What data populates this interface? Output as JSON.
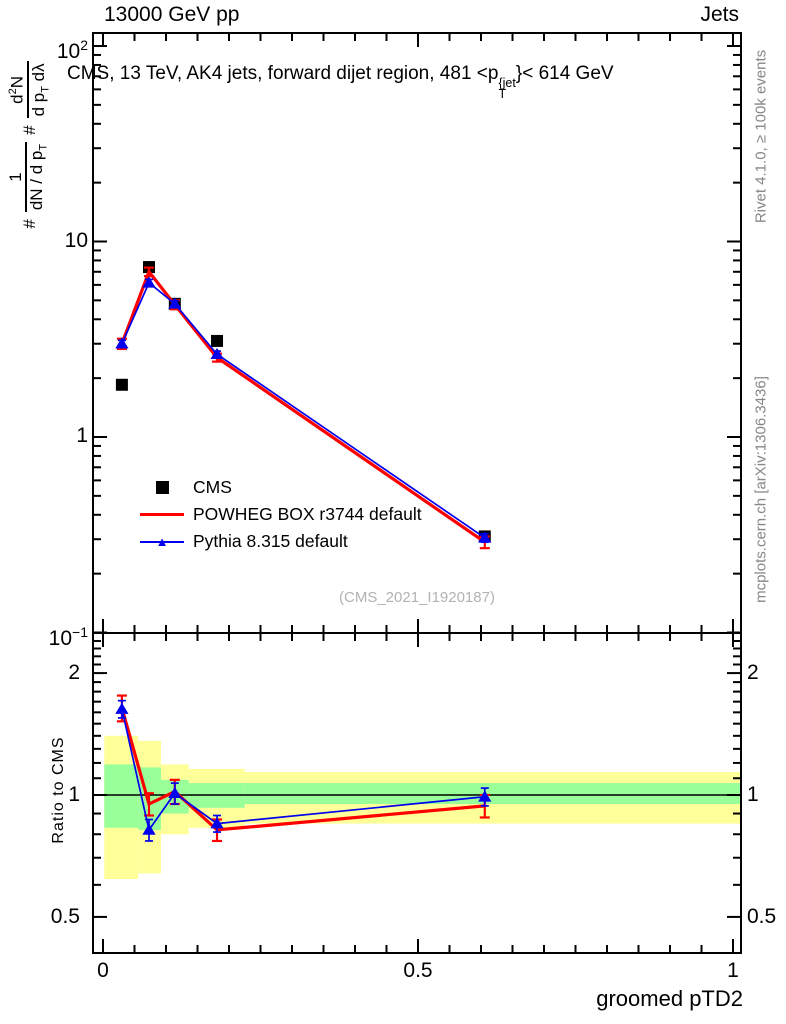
{
  "header": {
    "left": "13000 GeV pp",
    "right": "Jets"
  },
  "title": {
    "prefix": "CMS, 13 TeV, AK4 jets, forward dijet region, 481 <p",
    "sup": "{jet",
    "sub": "T",
    "suffix": "}< 614 GeV"
  },
  "ylabel": {
    "hash1": "#",
    "num1": "1",
    "den1_main": "dN / d p",
    "den1_sub": "T",
    "hash2": "#",
    "num2_d": "d",
    "num2_exp": "2",
    "num2_n": "N",
    "den2_main": "d p",
    "den2_sub": "T",
    "den2_tail": " dλ"
  },
  "ratio_ylabel": "Ratio to CMS",
  "xlabel": "groomed pTD2",
  "watermark": "(CMS_2021_I1920187)",
  "side_notes": {
    "top": "Rivet 4.1.0, ≥ 100k events",
    "bottom": "mcplots.cern.ch [arXiv:1306.3436]"
  },
  "legend": {
    "items": [
      {
        "label": "CMS",
        "type": "square-marker",
        "color": "#000000"
      },
      {
        "label": "POWHEG BOX r3744 default",
        "type": "line",
        "color": "#ff0000"
      },
      {
        "label": "Pythia 8.315 default",
        "type": "line-triangle",
        "color": "#0000ee"
      }
    ]
  },
  "colors": {
    "red": "#ff0000",
    "blue": "#0000ee",
    "black": "#000000",
    "band_yellow": "#ffff99",
    "band_green": "#99ff99",
    "gray_text": "#878787",
    "watermark": "#b2b2b2"
  },
  "chart_data": [
    {
      "type": "line",
      "panel": "main",
      "title": "CMS, 13 TeV, AK4 jets, forward dijet region, 481 < pT{jet} < 614 GeV",
      "xlabel": "groomed pTD2",
      "ylabel": "# 1/(dN/dpT) # d2N/(dpT dlambda)",
      "x_scale": "linear",
      "y_scale": "log",
      "xlim": [
        -0.016,
        1.013
      ],
      "ylim": [
        0.1,
        116
      ],
      "x_major_ticks": [
        {
          "v": 0,
          "label": "0"
        },
        {
          "v": 0.5,
          "label": "0.5"
        },
        {
          "v": 1,
          "label": "1"
        }
      ],
      "x_minor_step": 0.05,
      "y_major_ticks": [
        {
          "v": 100,
          "base": "10",
          "exp": "2"
        },
        {
          "v": 10,
          "base": "10",
          "exp": ""
        },
        {
          "v": 1,
          "base": "1",
          "exp": ""
        },
        {
          "v": 0.1,
          "base": "10",
          "exp": "−1"
        }
      ],
      "x": [
        0.03,
        0.073,
        0.114,
        0.181,
        0.606
      ],
      "series": [
        {
          "name": "CMS",
          "draw": "markers",
          "marker": "square",
          "color": "#000000",
          "y": [
            1.85,
            7.4,
            4.8,
            3.1,
            0.31
          ]
        },
        {
          "name": "POWHEG BOX r3744 default",
          "draw": "line+err",
          "color": "#ff0000",
          "width": 3.2,
          "y": [
            3.0,
            7.0,
            4.75,
            2.55,
            0.29
          ],
          "yerr": [
            0.18,
            0.35,
            0.25,
            0.12,
            0.02
          ]
        },
        {
          "name": "Pythia 8.315 default",
          "draw": "line+err",
          "marker": "triangle",
          "color": "#0000ee",
          "width": 1.7,
          "y": [
            3.0,
            6.15,
            4.8,
            2.65,
            0.305
          ],
          "yerr": [
            0.12,
            0.25,
            0.18,
            0.1,
            0.015
          ]
        }
      ]
    },
    {
      "type": "line",
      "panel": "ratio",
      "ylabel": "Ratio to CMS",
      "y_scale": "log",
      "ylim": [
        0.407,
        2.512
      ],
      "ref_line": 1,
      "y_major_ticks": [
        {
          "v": 2,
          "label": "2"
        },
        {
          "v": 1,
          "label": "1"
        },
        {
          "v": 0.5,
          "label": "0.5"
        }
      ],
      "y_minor_range": [
        0.4,
        2.4
      ],
      "bands": [
        {
          "color": "band_yellow",
          "bins": [
            [
              0.002,
              0.056,
              0.62,
              1.4
            ],
            [
              0.056,
              0.092,
              0.64,
              1.36
            ],
            [
              0.092,
              0.136,
              0.8,
              1.19
            ],
            [
              0.136,
              0.225,
              0.83,
              1.16
            ],
            [
              0.225,
              1.013,
              0.85,
              1.14
            ]
          ]
        },
        {
          "color": "band_green",
          "bins": [
            [
              0.002,
              0.056,
              0.83,
              1.19
            ],
            [
              0.056,
              0.092,
              0.82,
              1.17
            ],
            [
              0.092,
              0.136,
              0.9,
              1.09
            ],
            [
              0.136,
              0.225,
              0.93,
              1.07
            ],
            [
              0.225,
              1.013,
              0.95,
              1.07
            ]
          ]
        }
      ],
      "x": [
        0.03,
        0.073,
        0.114,
        0.181,
        0.606
      ],
      "series": [
        {
          "name": "POWHEG BOX r3744 default",
          "draw": "line+err",
          "color": "#ff0000",
          "width": 3.2,
          "y": [
            1.64,
            0.95,
            1.02,
            0.82,
            0.94
          ],
          "yerr": [
            0.12,
            0.06,
            0.07,
            0.05,
            0.06
          ]
        },
        {
          "name": "Pythia 8.315 default",
          "draw": "line+err",
          "marker": "triangle",
          "color": "#0000ee",
          "width": 1.7,
          "y": [
            1.63,
            0.82,
            1.01,
            0.85,
            0.99
          ],
          "yerr": [
            0.08,
            0.05,
            0.06,
            0.04,
            0.05
          ]
        }
      ]
    }
  ]
}
